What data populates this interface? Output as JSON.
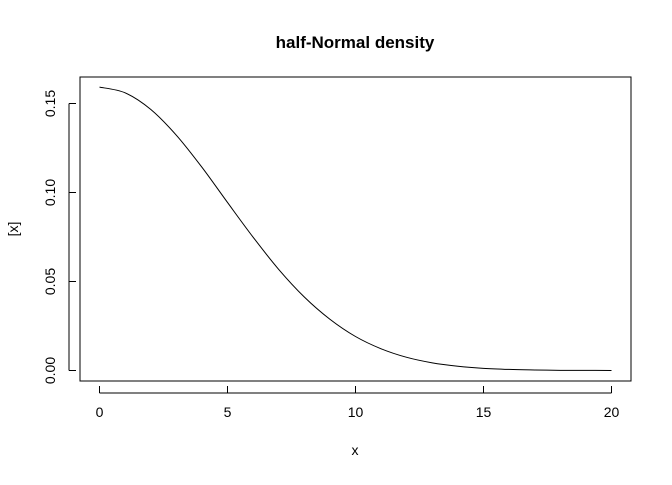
{
  "chart_data": {
    "type": "line",
    "title": "half-Normal density",
    "xlabel": "x",
    "ylabel": "[x]",
    "xlim": [
      0,
      20
    ],
    "ylim": [
      0,
      0.16
    ],
    "x_ticks": [
      0,
      5,
      10,
      15,
      20
    ],
    "x_tick_labels": [
      "0",
      "5",
      "10",
      "15",
      "20"
    ],
    "y_ticks": [
      0,
      0.05,
      0.1,
      0.15
    ],
    "y_tick_labels": [
      "0.00",
      "0.05",
      "0.10",
      "0.15"
    ],
    "grid": false,
    "series": [
      {
        "x": [
          0,
          1,
          2,
          3,
          4,
          5,
          6,
          7,
          8,
          9,
          10,
          11,
          12,
          13,
          14,
          15,
          16,
          17,
          18,
          19,
          20
        ],
        "values": [
          0.1592,
          0.156,
          0.1467,
          0.1322,
          0.1142,
          0.0944,
          0.0749,
          0.0568,
          0.0413,
          0.0288,
          0.0191,
          0.0122,
          0.0074,
          0.0043,
          0.0024,
          0.0012,
          0.0006,
          0.0003,
          0.0001,
          0.0001,
          0.0
        ],
        "color": "#000000"
      }
    ]
  }
}
